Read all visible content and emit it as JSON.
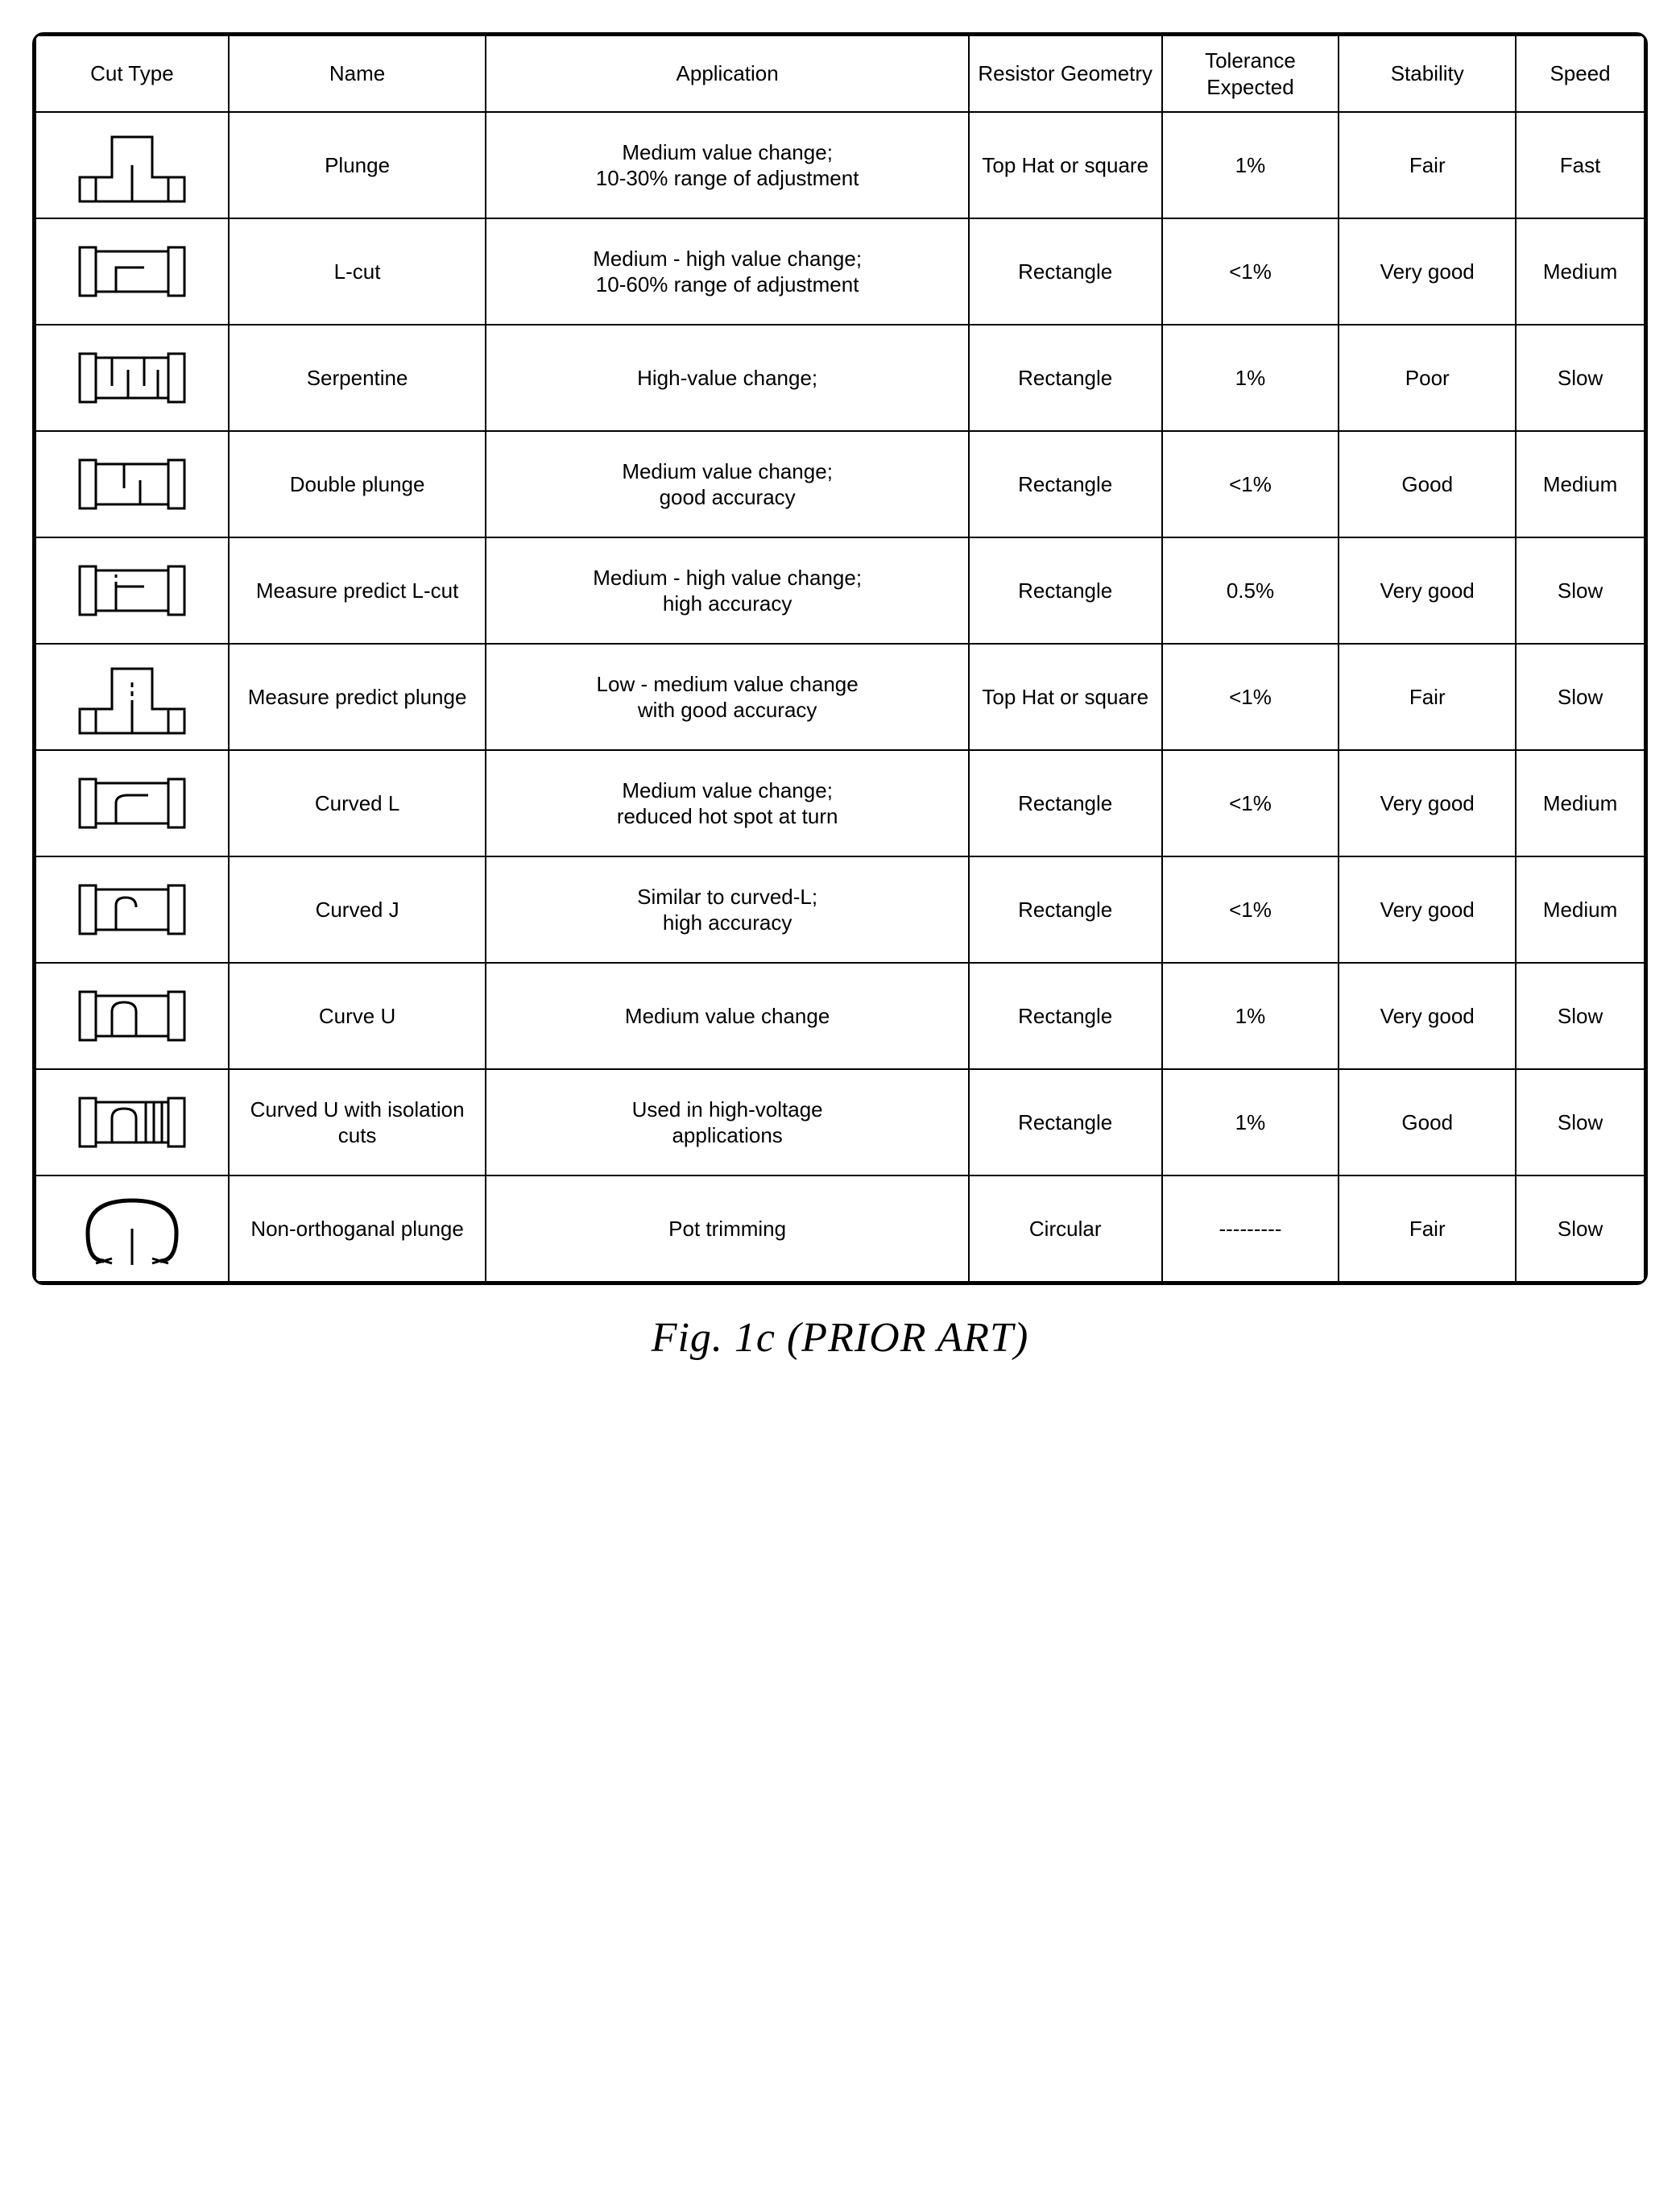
{
  "headers": {
    "cut_type": "Cut Type",
    "name": "Name",
    "application": "Application",
    "geometry": "Resistor Geometry",
    "tolerance": "Tolerance Expected",
    "stability": "Stability",
    "speed": "Speed"
  },
  "rows": [
    {
      "name": "Plunge",
      "application": "Medium value change;\n10-30% range of adjustment",
      "geometry": "Top Hat or square",
      "tolerance": "1%",
      "stability": "Fair",
      "speed": "Fast",
      "icon": "plunge"
    },
    {
      "name": "L-cut",
      "application": "Medium - high value change;\n10-60% range of adjustment",
      "geometry": "Rectangle",
      "tolerance": "<1%",
      "stability": "Very good",
      "speed": "Medium",
      "icon": "lcut"
    },
    {
      "name": "Serpentine",
      "application": "High-value change;",
      "geometry": "Rectangle",
      "tolerance": "1%",
      "stability": "Poor",
      "speed": "Slow",
      "icon": "serpentine"
    },
    {
      "name": "Double plunge",
      "application": "Medium value change;\ngood accuracy",
      "geometry": "Rectangle",
      "tolerance": "<1%",
      "stability": "Good",
      "speed": "Medium",
      "icon": "double_plunge"
    },
    {
      "name": "Measure predict L-cut",
      "application": "Medium - high value change;\nhigh accuracy",
      "geometry": "Rectangle",
      "tolerance": "0.5%",
      "stability": "Very good",
      "speed": "Slow",
      "icon": "mp_lcut"
    },
    {
      "name": "Measure predict plunge",
      "application": "Low - medium value change\nwith good accuracy",
      "geometry": "Top Hat or square",
      "tolerance": "<1%",
      "stability": "Fair",
      "speed": "Slow",
      "icon": "mp_plunge"
    },
    {
      "name": "Curved L",
      "application": "Medium value change;\nreduced hot spot at turn",
      "geometry": "Rectangle",
      "tolerance": "<1%",
      "stability": "Very good",
      "speed": "Medium",
      "icon": "curved_l"
    },
    {
      "name": "Curved J",
      "application": "Similar to curved-L;\nhigh accuracy",
      "geometry": "Rectangle",
      "tolerance": "<1%",
      "stability": "Very good",
      "speed": "Medium",
      "icon": "curved_j"
    },
    {
      "name": "Curve U",
      "application": "Medium value change",
      "geometry": "Rectangle",
      "tolerance": "1%",
      "stability": "Very good",
      "speed": "Slow",
      "icon": "curve_u"
    },
    {
      "name": "Curved U with isolation cuts",
      "application": "Used in high-voltage\napplications",
      "geometry": "Rectangle",
      "tolerance": "1%",
      "stability": "Good",
      "speed": "Slow",
      "icon": "curve_u_iso"
    },
    {
      "name": "Non-orthoganal plunge",
      "application": "Pot trimming",
      "geometry": "Circular",
      "tolerance": "---------",
      "stability": "Fair",
      "speed": "Slow",
      "icon": "non_ortho"
    }
  ],
  "caption": "Fig. 1c (PRIOR ART)",
  "style": {
    "stroke": "#000000",
    "stroke_width": 3,
    "dash": "6 5",
    "bg": "#ffffff"
  }
}
